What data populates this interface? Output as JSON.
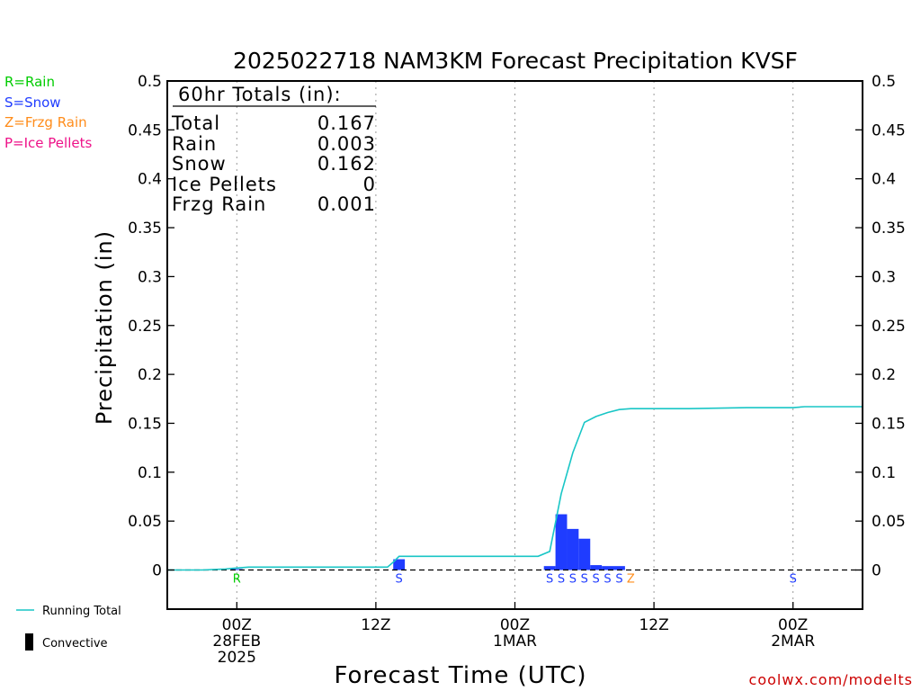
{
  "colors": {
    "rain": "#00cc00",
    "snow": "#1f3cff",
    "frzg": "#ff8c1a",
    "ice": "#ee1188",
    "running_total": "#19c6c6",
    "bar": "#1f3cff",
    "credit": "#cc0000"
  },
  "key": {
    "rain": "R=Rain",
    "snow": "S=Snow",
    "frzg": "Z=Frzg Rain",
    "ice": "P=Ice Pellets"
  },
  "totals": {
    "header": "60hr Totals (in):",
    "rows": [
      {
        "label": "Total",
        "value": "0.167"
      },
      {
        "label": "Rain",
        "value": "0.003"
      },
      {
        "label": "Snow",
        "value": "0.162"
      },
      {
        "label": "Ice Pellets",
        "value": "0"
      },
      {
        "label": "Frzg Rain",
        "value": "0.001"
      }
    ]
  },
  "legend": {
    "running_total": "Running Total",
    "convective": "Convective"
  },
  "credit": "coolwx.com/modelts",
  "chart_data": {
    "type": "bar",
    "title": "2025022718 NAM3KM Forecast Precipitation KVSF",
    "xlabel": "Forecast Time (UTC)",
    "ylabel": "Precipitation (in)",
    "x_units": "forecast hours from 2025-02-27 18Z",
    "xlim": [
      0,
      60
    ],
    "ylim": [
      -0.04,
      0.5
    ],
    "y_ticks": [
      0,
      0.05,
      0.1,
      0.15,
      0.2,
      0.25,
      0.3,
      0.35,
      0.4,
      0.45,
      0.5
    ],
    "y_tick_labels": [
      "0",
      "0.05",
      "0.1",
      "0.15",
      "0.2",
      "0.25",
      "0.3",
      "0.35",
      "0.4",
      "0.45",
      "0.5"
    ],
    "x_ticks": [
      {
        "hour": 6,
        "lines": [
          "00Z",
          "28FEB",
          "2025"
        ]
      },
      {
        "hour": 18,
        "lines": [
          "12Z"
        ]
      },
      {
        "hour": 30,
        "lines": [
          "00Z",
          "1MAR"
        ]
      },
      {
        "hour": 42,
        "lines": [
          "12Z"
        ]
      },
      {
        "hour": 54,
        "lines": [
          "00Z",
          "2MAR"
        ]
      }
    ],
    "grid": "dotted vertical at tick marks",
    "zero_line": "dashed",
    "bars": [
      {
        "start": 5.5,
        "end": 6.5,
        "value": 0.001
      },
      {
        "start": 19.5,
        "end": 20.5,
        "value": 0.011
      },
      {
        "start": 32.5,
        "end": 33.5,
        "value": 0.004
      },
      {
        "start": 33.5,
        "end": 34.5,
        "value": 0.057
      },
      {
        "start": 34.5,
        "end": 35.5,
        "value": 0.042
      },
      {
        "start": 35.5,
        "end": 36.5,
        "value": 0.032
      },
      {
        "start": 36.5,
        "end": 37.5,
        "value": 0.005
      },
      {
        "start": 37.5,
        "end": 38.5,
        "value": 0.004
      },
      {
        "start": 38.5,
        "end": 39.5,
        "value": 0.004
      }
    ],
    "series": [
      {
        "name": "Running Total",
        "x": [
          0,
          3,
          5,
          6,
          7,
          19,
          19.5,
          20,
          21,
          31,
          32,
          33,
          34,
          35,
          36,
          37,
          38,
          39,
          40,
          45,
          50,
          54,
          55,
          60
        ],
        "y": [
          0,
          0,
          0.001,
          0.002,
          0.003,
          0.003,
          0.008,
          0.014,
          0.014,
          0.014,
          0.014,
          0.019,
          0.078,
          0.12,
          0.151,
          0.157,
          0.161,
          0.164,
          0.165,
          0.165,
          0.166,
          0.166,
          0.167,
          0.167
        ]
      }
    ],
    "type_marks": [
      {
        "hour": 6,
        "code": "R",
        "type": "rain"
      },
      {
        "hour": 20,
        "code": "S",
        "type": "snow"
      },
      {
        "hour": 33,
        "code": "S",
        "type": "snow"
      },
      {
        "hour": 34,
        "code": "S",
        "type": "snow"
      },
      {
        "hour": 35,
        "code": "S",
        "type": "snow"
      },
      {
        "hour": 36,
        "code": "S",
        "type": "snow"
      },
      {
        "hour": 37,
        "code": "S",
        "type": "snow"
      },
      {
        "hour": 38,
        "code": "S",
        "type": "snow"
      },
      {
        "hour": 39,
        "code": "S",
        "type": "snow"
      },
      {
        "hour": 40,
        "code": "Z",
        "type": "frzg"
      },
      {
        "hour": 54,
        "code": "S",
        "type": "snow"
      }
    ]
  }
}
